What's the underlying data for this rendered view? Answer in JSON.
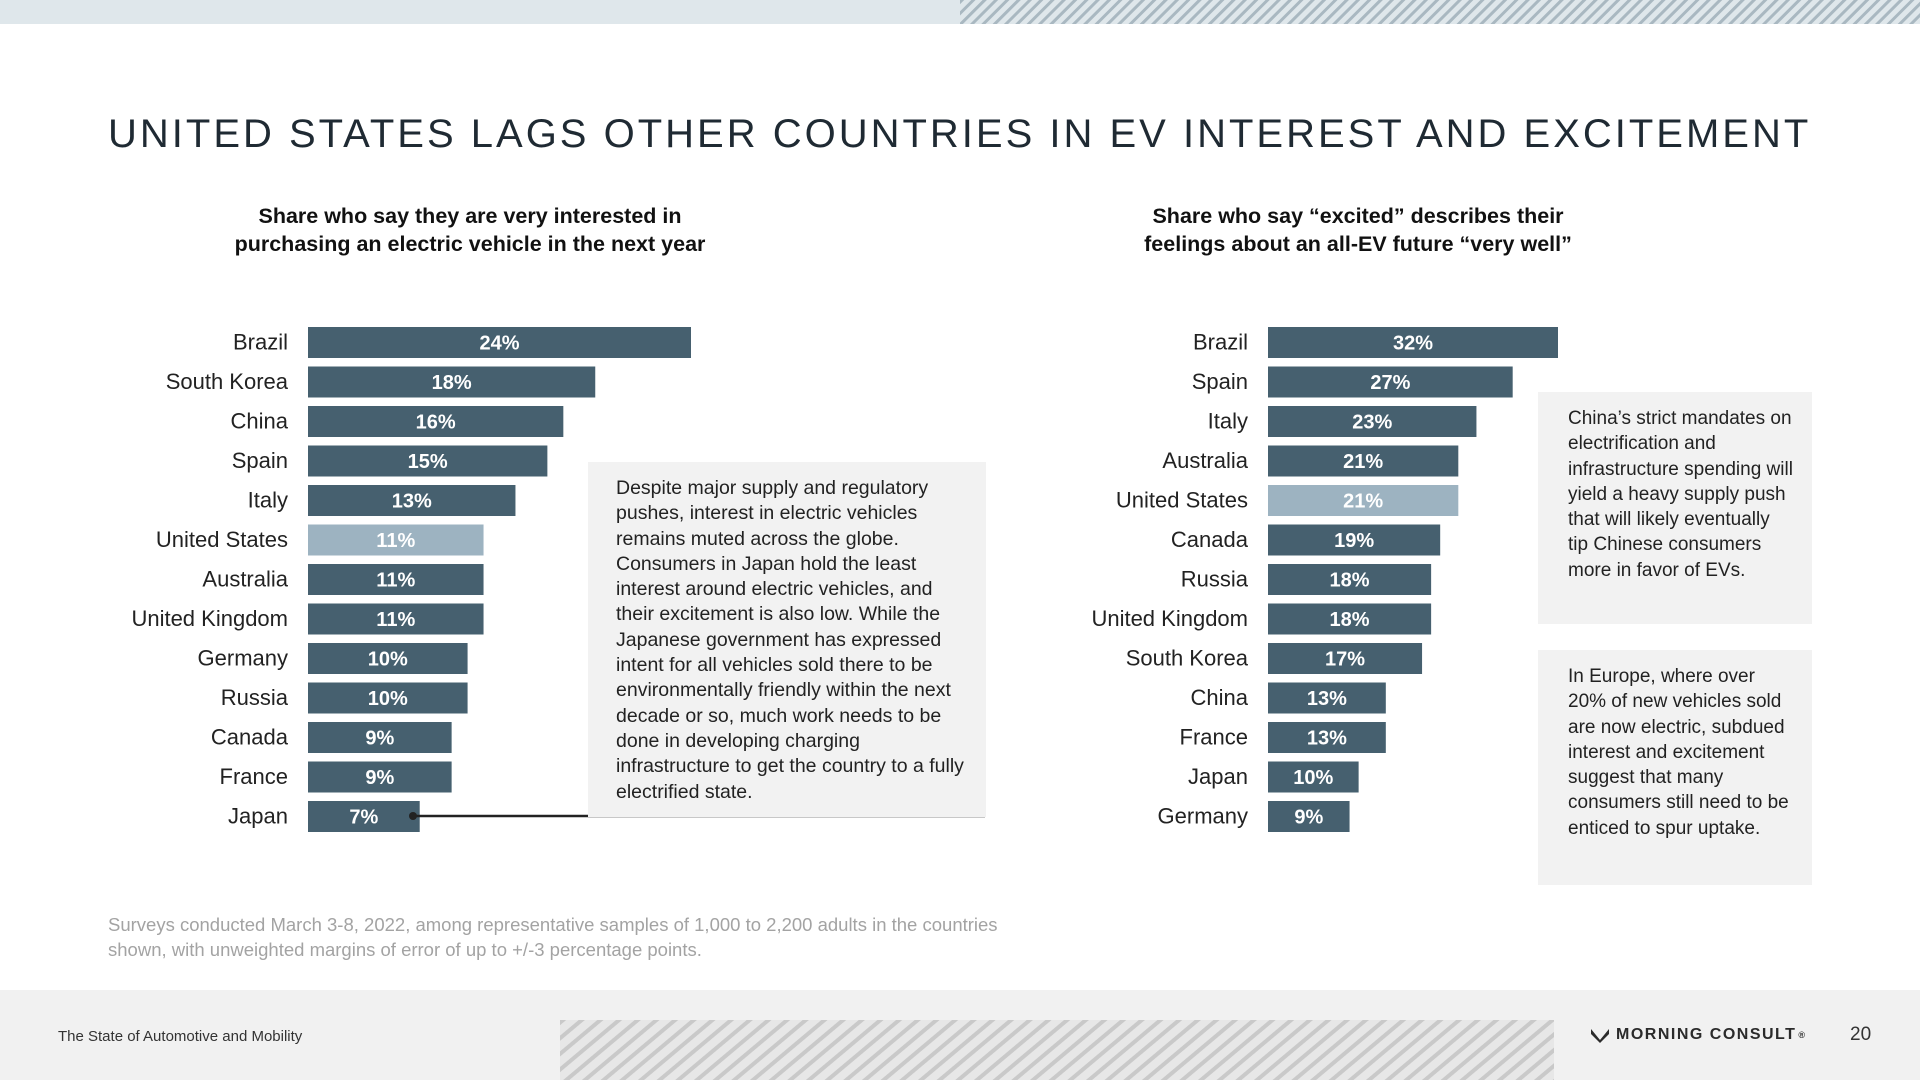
{
  "page": {
    "title": "UNITED STATES LAGS OTHER COUNTRIES IN EV INTEREST AND EXCITEMENT"
  },
  "colors": {
    "bar": "#46606f",
    "highlight": "#9db3c1",
    "note_bg": "#f2f2f2"
  },
  "chart_data": [
    {
      "type": "bar",
      "orientation": "horizontal",
      "title_lines": [
        "Share who say they are very interested in",
        "purchasing an electric vehicle in the next year"
      ],
      "categories": [
        "Brazil",
        "South Korea",
        "China",
        "Spain",
        "Italy",
        "United States",
        "Australia",
        "United Kingdom",
        "Germany",
        "Russia",
        "Canada",
        "France",
        "Japan"
      ],
      "values": [
        24,
        18,
        16,
        15,
        13,
        11,
        11,
        11,
        10,
        10,
        9,
        9,
        7
      ],
      "labels": [
        "24%",
        "18%",
        "16%",
        "15%",
        "13%",
        "11%",
        "11%",
        "11%",
        "10%",
        "10%",
        "9%",
        "9%",
        "7%"
      ],
      "highlight": "United States",
      "unit": "%",
      "xlabel": "",
      "ylabel": "",
      "xlim": [
        0,
        24
      ]
    },
    {
      "type": "bar",
      "orientation": "horizontal",
      "title_lines": [
        "Share who say “excited” describes their",
        "feelings about an all-EV future “very well”"
      ],
      "categories": [
        "Brazil",
        "Spain",
        "Italy",
        "Australia",
        "United States",
        "Canada",
        "Russia",
        "United Kingdom",
        "South Korea",
        "China",
        "France",
        "Japan",
        "Germany"
      ],
      "values": [
        32,
        27,
        23,
        21,
        21,
        19,
        18,
        18,
        17,
        13,
        13,
        10,
        9
      ],
      "labels": [
        "32%",
        "27%",
        "23%",
        "21%",
        "21%",
        "19%",
        "18%",
        "18%",
        "17%",
        "13%",
        "13%",
        "10%",
        "9%"
      ],
      "highlight": "United States",
      "unit": "%",
      "xlabel": "",
      "ylabel": "",
      "xlim": [
        0,
        32
      ]
    }
  ],
  "notes": {
    "left": "Despite major supply and regulatory pushes, interest in electric vehicles remains muted across the globe. Consumers in Japan hold the least interest around electric vehicles, and their excitement is also low. While the Japanese government has expressed intent for all vehicles sold there to be environmentally friendly within the next decade or so, much work needs to be done in developing charging infrastructure to get the country to a fully electrified state.",
    "right_top": "China’s strict mandates on electrification and infrastructure spending will yield a heavy supply push that will likely eventually tip Chinese consumers more in favor of EVs.",
    "right_bottom": "In Europe, where over 20% of new vehicles sold are now electric, subdued interest and excitement suggest that many consumers still need to be enticed to spur uptake."
  },
  "survey_note": "Surveys conducted March 3-8, 2022, among representative samples of 1,000 to 2,200 adults in the countries shown, with unweighted margins of error of up to +/-3 percentage points.",
  "footer": {
    "report_title": "The State of Automotive and Mobility",
    "brand": "MORNING CONSULT",
    "brand_mark": "®",
    "page_number": "20",
    "brand_icon": "morning-consult-logo-icon"
  }
}
